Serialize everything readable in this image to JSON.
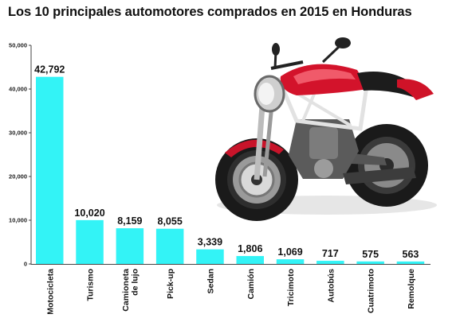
{
  "title": "Los 10 principales automotores comprados en 2015 en Honduras",
  "colors": {
    "bar": "#33f3f6",
    "axis": "#444444"
  },
  "chart_data": {
    "type": "bar",
    "title": "Los 10 principales automotores comprados en 2015 en Honduras",
    "categories": [
      "Motocicleta",
      "Turismo",
      "Camioneta de lujo",
      "Pick-up",
      "Sedan",
      "Camión",
      "Tricimoto",
      "Autobús",
      "Cuatrimoto",
      "Remolque"
    ],
    "values": [
      42792,
      10020,
      8159,
      8055,
      3339,
      1806,
      1069,
      717,
      575,
      563
    ],
    "value_labels": [
      "42,792",
      "10,020",
      "8,159",
      "8,055",
      "3,339",
      "1,806",
      "1,069",
      "717",
      "575",
      "563"
    ],
    "x_tick_lines": [
      [
        "Motocicleta"
      ],
      [
        "Turismo"
      ],
      [
        "Camioneta",
        "de lujo"
      ],
      [
        "Pick-up"
      ],
      [
        "Sedan"
      ],
      [
        "Camión"
      ],
      [
        "Tricimoto"
      ],
      [
        "Autobús"
      ],
      [
        "Cuatrimoto"
      ],
      [
        "Remolque"
      ]
    ],
    "y_ticks": [
      0,
      10000,
      20000,
      30000,
      40000,
      50000
    ],
    "y_tick_labels": [
      "0",
      "10,000",
      "20,000",
      "30,000",
      "40,000",
      "50,000"
    ],
    "ylim": [
      0,
      50000
    ],
    "xlabel": "",
    "ylabel": "",
    "grid": false,
    "decoration": "motorcycle-illustration"
  }
}
